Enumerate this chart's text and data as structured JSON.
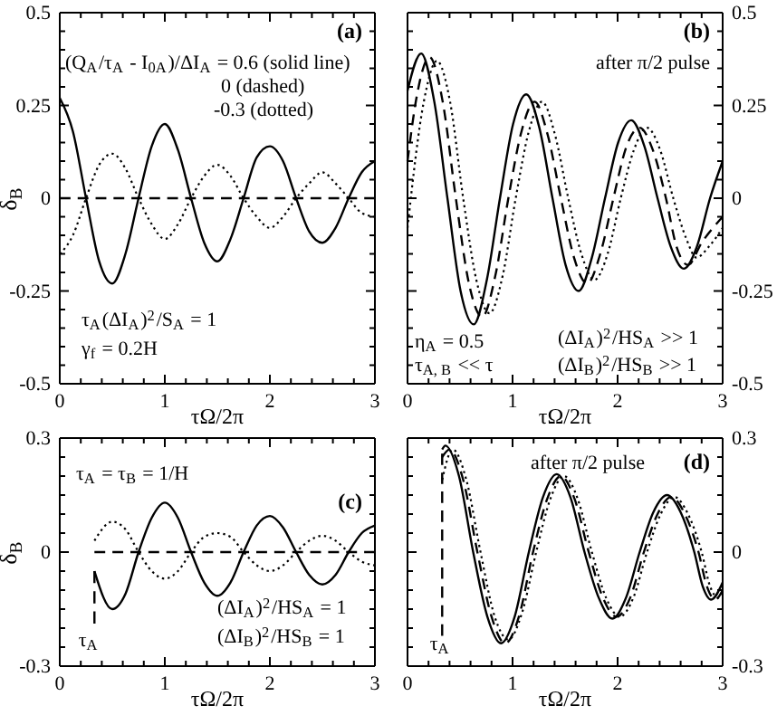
{
  "chart_data": [
    {
      "type": "line",
      "xlabel": "τΩ/2π",
      "ylabel": "δ$_{B}$",
      "xlim": [
        0,
        3
      ],
      "ylim": [
        -0.5,
        0.5
      ],
      "xticks": [
        0,
        {
          "value": 0.2,
          "label": null
        },
        {
          "value": 0.4,
          "label": null
        },
        {
          "value": 0.6,
          "label": null
        },
        {
          "value": 0.8,
          "label": null
        },
        1,
        {
          "value": 1.2,
          "label": null
        },
        {
          "value": 1.4,
          "label": null
        },
        {
          "value": 1.6,
          "label": null
        },
        {
          "value": 1.8,
          "label": null
        },
        2,
        {
          "value": 2.2,
          "label": null
        },
        {
          "value": 2.4,
          "label": null
        },
        {
          "value": 2.6,
          "label": null
        },
        {
          "value": 2.8,
          "label": null
        },
        3
      ],
      "yticks": [
        -0.5,
        {
          "value": -0.45,
          "label": null
        },
        {
          "value": -0.4,
          "label": null
        },
        {
          "value": -0.35,
          "label": null
        },
        {
          "value": -0.3,
          "label": null
        },
        -0.25,
        {
          "value": -0.2,
          "label": null
        },
        {
          "value": -0.15,
          "label": null
        },
        {
          "value": -0.1,
          "label": null
        },
        {
          "value": -0.05,
          "label": null
        },
        0,
        {
          "value": 0.05,
          "label": null
        },
        {
          "value": 0.1,
          "label": null
        },
        {
          "value": 0.15,
          "label": null
        },
        {
          "value": 0.2,
          "label": null
        },
        0.25,
        {
          "value": 0.3,
          "label": null
        },
        {
          "value": 0.35,
          "label": null
        },
        {
          "value": 0.4,
          "label": null
        },
        {
          "value": 0.45,
          "label": null
        },
        0.5
      ],
      "x": [
        0,
        0.125,
        0.25,
        0.375,
        0.5,
        0.625,
        0.75,
        0.875,
        1,
        1.125,
        1.25,
        1.375,
        1.5,
        1.625,
        1.75,
        1.875,
        2,
        2.125,
        2.25,
        2.375,
        2.5,
        2.625,
        2.75,
        2.875,
        3
      ],
      "series": [
        {
          "color": "#000000",
          "line_style": "solid",
          "values": [
            0.27,
            0.18,
            0,
            -0.17,
            -0.23,
            -0.15,
            0,
            0.14,
            0.2,
            0.13,
            0,
            -0.12,
            -0.17,
            -0.11,
            0,
            0.11,
            0.14,
            0.1,
            0,
            -0.09,
            -0.12,
            -0.08,
            0,
            0.07,
            0.1
          ]
        },
        {
          "color": "#000000",
          "line_style": "dashed",
          "x": [
            0,
            3
          ],
          "values": [
            0,
            0
          ]
        },
        {
          "color": "#000000",
          "line_style": "dotted",
          "values": [
            -0.15,
            -0.1,
            0,
            0.09,
            0.12,
            0.08,
            0,
            -0.07,
            -0.11,
            -0.07,
            0,
            0.06,
            0.09,
            0.06,
            0,
            -0.05,
            -0.08,
            -0.05,
            0,
            0.04,
            0.07,
            0.04,
            0,
            -0.04,
            -0.05
          ]
        }
      ],
      "annotations": [
        "(a)",
        "(Q$_{A}$/τ$_{A}$ - I$_{0A}$)/ΔI$_{A}$ = 0.6  (solid line)",
        "0  (dashed)",
        "-0.3  (dotted)",
        "τ$_{A}$(ΔI$_{A}$)$^{2}$/S$_{A}$ = 1",
        "γ$_{f}$ = 0.2H"
      ]
    },
    {
      "type": "line",
      "xlabel": "τΩ/2π",
      "xlim": [
        0,
        3
      ],
      "y2lim": [
        -0.5,
        0.5
      ],
      "xticks": [
        0,
        {
          "value": 0.2,
          "label": null
        },
        {
          "value": 0.4,
          "label": null
        },
        {
          "value": 0.6,
          "label": null
        },
        {
          "value": 0.8,
          "label": null
        },
        1,
        {
          "value": 1.2,
          "label": null
        },
        {
          "value": 1.4,
          "label": null
        },
        {
          "value": 1.6,
          "label": null
        },
        {
          "value": 1.8,
          "label": null
        },
        2,
        {
          "value": 2.2,
          "label": null
        },
        {
          "value": 2.4,
          "label": null
        },
        {
          "value": 2.6,
          "label": null
        },
        {
          "value": 2.8,
          "label": null
        },
        3
      ],
      "y2ticks": [
        -0.5,
        {
          "value": -0.45,
          "label": null
        },
        {
          "value": -0.4,
          "label": null
        },
        {
          "value": -0.35,
          "label": null
        },
        {
          "value": -0.3,
          "label": null
        },
        -0.25,
        {
          "value": -0.2,
          "label": null
        },
        {
          "value": -0.15,
          "label": null
        },
        {
          "value": -0.1,
          "label": null
        },
        {
          "value": -0.05,
          "label": null
        },
        0,
        {
          "value": 0.05,
          "label": null
        },
        {
          "value": 0.1,
          "label": null
        },
        {
          "value": 0.15,
          "label": null
        },
        {
          "value": 0.2,
          "label": null
        },
        0.25,
        {
          "value": 0.3,
          "label": null
        },
        {
          "value": 0.35,
          "label": null
        },
        {
          "value": 0.4,
          "label": null
        },
        {
          "value": 0.45,
          "label": null
        },
        0.5
      ],
      "series": [
        {
          "color": "#000000",
          "line_style": "solid",
          "axis": "y2",
          "x": [
            0,
            0.13,
            0.255,
            0.38,
            0.505,
            0.63,
            0.755,
            0.88,
            1.005,
            1.13,
            1.255,
            1.38,
            1.505,
            1.63,
            1.755,
            1.88,
            2.005,
            2.13,
            2.255,
            2.38,
            2.505,
            2.63,
            2.755,
            2.88,
            3
          ],
          "values": [
            0.29,
            0.39,
            0.26,
            0,
            -0.25,
            -0.34,
            -0.22,
            0,
            0.2,
            0.28,
            0.19,
            0,
            -0.18,
            -0.25,
            -0.16,
            0,
            0.15,
            0.21,
            0.14,
            0,
            -0.13,
            -0.19,
            -0.13,
            0,
            0.1
          ]
        },
        {
          "color": "#000000",
          "line_style": "dashed",
          "axis": "y2",
          "x": [
            0,
            0.085,
            0.21,
            0.335,
            0.46,
            0.585,
            0.71,
            0.835,
            0.96,
            1.085,
            1.21,
            1.335,
            1.46,
            1.585,
            1.71,
            1.835,
            1.96,
            2.085,
            2.21,
            2.335,
            2.46,
            2.56,
            2.67,
            2.8,
            3
          ],
          "values": [
            0.1,
            0.27,
            0.38,
            0.26,
            0,
            -0.23,
            -0.32,
            -0.21,
            0,
            0.18,
            0.26,
            0.17,
            0,
            -0.16,
            -0.23,
            -0.15,
            0,
            0.14,
            0.19,
            0.13,
            0,
            -0.13,
            -0.18,
            -0.12,
            -0.05
          ]
        },
        {
          "color": "#000000",
          "line_style": "dotted",
          "axis": "y2",
          "x": [
            0,
            0.155,
            0.28,
            0.405,
            0.53,
            0.655,
            0.78,
            0.905,
            1.03,
            1.155,
            1.28,
            1.405,
            1.53,
            1.655,
            1.78,
            1.905,
            2.03,
            2.155,
            2.28,
            2.405,
            2.53,
            2.655,
            2.75,
            2.87,
            3
          ],
          "values": [
            -0.08,
            0.26,
            0.37,
            0.26,
            0,
            -0.22,
            -0.31,
            -0.21,
            0,
            0.18,
            0.26,
            0.17,
            0,
            -0.15,
            -0.22,
            -0.15,
            0,
            0.13,
            0.19,
            0.13,
            0,
            -0.11,
            -0.16,
            -0.13,
            -0.08
          ]
        }
      ],
      "annotations": [
        "(b)",
        "after π/2 pulse",
        "η$_{A}$ = 0.5",
        "τ$_{A, B}$ << τ",
        "(ΔI$_{A}$)$^{2}$/HS$_{A}$ >> 1",
        "(ΔI$_{B}$)$^{2}$/HS$_{B}$ >> 1"
      ]
    },
    {
      "type": "line",
      "xlabel": "τΩ/2π",
      "ylabel": "δ$_{B}$",
      "xlim": [
        0,
        3
      ],
      "ylim": [
        -0.3,
        0.3
      ],
      "xticks": [
        0,
        {
          "value": 0.2,
          "label": null
        },
        {
          "value": 0.4,
          "label": null
        },
        {
          "value": 0.6,
          "label": null
        },
        {
          "value": 0.8,
          "label": null
        },
        1,
        {
          "value": 1.2,
          "label": null
        },
        {
          "value": 1.4,
          "label": null
        },
        {
          "value": 1.6,
          "label": null
        },
        {
          "value": 1.8,
          "label": null
        },
        2,
        {
          "value": 2.2,
          "label": null
        },
        {
          "value": 2.4,
          "label": null
        },
        {
          "value": 2.6,
          "label": null
        },
        {
          "value": 2.8,
          "label": null
        },
        3
      ],
      "yticks": [
        -0.3,
        {
          "value": -0.25,
          "label": null
        },
        {
          "value": -0.2,
          "label": null
        },
        {
          "value": -0.15,
          "label": null
        },
        {
          "value": -0.1,
          "label": null
        },
        {
          "value": -0.05,
          "label": null
        },
        0,
        {
          "value": 0.05,
          "label": null
        },
        {
          "value": 0.1,
          "label": null
        },
        {
          "value": 0.15,
          "label": null
        },
        {
          "value": 0.2,
          "label": null
        },
        {
          "value": 0.25,
          "label": null
        },
        0.3
      ],
      "x": [
        0.33,
        0.5,
        0.625,
        0.75,
        0.875,
        1,
        1.125,
        1.25,
        1.375,
        1.5,
        1.625,
        1.75,
        1.875,
        2,
        2.125,
        2.25,
        2.375,
        2.5,
        2.625,
        2.75,
        2.875,
        3
      ],
      "series": [
        {
          "color": "#000000",
          "line_style": "solid",
          "values": [
            -0.05,
            -0.15,
            -0.11,
            0,
            0.09,
            0.13,
            0.09,
            0,
            -0.08,
            -0.115,
            -0.08,
            0,
            0.07,
            0.095,
            0.065,
            0,
            -0.06,
            -0.085,
            -0.06,
            0,
            0.05,
            0.07
          ]
        },
        {
          "color": "#000000",
          "line_style": "dashed",
          "x": [
            0.33,
            3
          ],
          "values": [
            0,
            0
          ]
        },
        {
          "color": "#000000",
          "line_style": "dotted",
          "values": [
            0.03,
            0.08,
            0.06,
            0,
            -0.05,
            -0.07,
            -0.05,
            0,
            0.04,
            0.05,
            0.04,
            0,
            -0.035,
            -0.05,
            -0.035,
            0,
            0.03,
            0.043,
            0.03,
            0,
            -0.025,
            -0.035
          ]
        },
        {
          "color": "#000000",
          "line_style": "dashed",
          "x": [
            0.33,
            0.33
          ],
          "values": [
            -0.05,
            -0.19
          ]
        }
      ],
      "annotations": [
        "(c)",
        "τ$_{A}$ = τ$_{B}$ = 1/H",
        "(ΔI$_{A}$)$^{2}$/HS$_{A}$ = 1",
        "(ΔI$_{B}$)$^{2}$/HS$_{B}$ = 1",
        "τ$_{A}$"
      ]
    },
    {
      "type": "line",
      "xlabel": "τΩ/2π",
      "xlim": [
        0,
        3
      ],
      "y2lim": [
        -0.3,
        0.3
      ],
      "xticks": [
        0,
        {
          "value": 0.2,
          "label": null
        },
        {
          "value": 0.4,
          "label": null
        },
        {
          "value": 0.6,
          "label": null
        },
        {
          "value": 0.8,
          "label": null
        },
        1,
        {
          "value": 1.2,
          "label": null
        },
        {
          "value": 1.4,
          "label": null
        },
        {
          "value": 1.6,
          "label": null
        },
        {
          "value": 1.8,
          "label": null
        },
        2,
        {
          "value": 2.2,
          "label": null
        },
        {
          "value": 2.4,
          "label": null
        },
        {
          "value": 2.6,
          "label": null
        },
        {
          "value": 2.8,
          "label": null
        },
        3
      ],
      "y2ticks": [
        -0.3,
        {
          "value": -0.25,
          "label": null
        },
        {
          "value": -0.2,
          "label": null
        },
        {
          "value": -0.15,
          "label": null
        },
        {
          "value": -0.1,
          "label": null
        },
        {
          "value": -0.05,
          "label": null
        },
        0,
        {
          "value": 0.05,
          "label": null
        },
        {
          "value": 0.1,
          "label": null
        },
        {
          "value": 0.15,
          "label": null
        },
        {
          "value": 0.2,
          "label": null
        },
        {
          "value": 0.25,
          "label": null
        },
        0.3
      ],
      "series": [
        {
          "color": "#000000",
          "line_style": "solid",
          "axis": "y2",
          "x": [
            0.33,
            0.36,
            0.49,
            0.625,
            0.76,
            0.89,
            1.02,
            1.155,
            1.29,
            1.42,
            1.55,
            1.685,
            1.82,
            1.95,
            2.08,
            2.21,
            2.34,
            2.47,
            2.6,
            2.73,
            2.81,
            2.89,
            3
          ],
          "values": [
            0.27,
            0.28,
            0.2,
            0,
            -0.17,
            -0.24,
            -0.17,
            0,
            0.145,
            0.205,
            0.145,
            0,
            -0.12,
            -0.175,
            -0.12,
            0,
            0.105,
            0.15,
            0.105,
            0,
            -0.09,
            -0.125,
            -0.08
          ]
        },
        {
          "color": "#000000",
          "line_style": "dashed",
          "axis": "y2",
          "x": [
            0.33,
            0.4,
            0.53,
            0.665,
            0.8,
            0.93,
            1.06,
            1.195,
            1.33,
            1.46,
            1.59,
            1.725,
            1.86,
            1.99,
            2.12,
            2.25,
            2.38,
            2.51,
            2.64,
            2.77,
            2.85,
            2.93,
            3
          ],
          "values": [
            0.25,
            0.27,
            0.19,
            0,
            -0.17,
            -0.24,
            -0.17,
            0,
            0.14,
            0.2,
            0.14,
            0,
            -0.12,
            -0.17,
            -0.12,
            0,
            0.1,
            0.145,
            0.1,
            0,
            -0.09,
            -0.125,
            -0.1
          ]
        },
        {
          "color": "#000000",
          "line_style": "dotted",
          "axis": "y2",
          "x": [
            0.33,
            0.43,
            0.56,
            0.695,
            0.83,
            0.96,
            1.09,
            1.225,
            1.36,
            1.49,
            1.62,
            1.755,
            1.89,
            2.02,
            2.15,
            2.28,
            2.41,
            2.54,
            2.67,
            2.8,
            2.88,
            2.96,
            3
          ],
          "values": [
            0.19,
            0.27,
            0.19,
            0,
            -0.17,
            -0.23,
            -0.16,
            0,
            0.14,
            0.2,
            0.14,
            0,
            -0.12,
            -0.17,
            -0.12,
            0,
            0.1,
            0.145,
            0.1,
            0,
            -0.09,
            -0.12,
            -0.11
          ]
        },
        {
          "color": "#000000",
          "line_style": "dashed",
          "axis": "y2",
          "x": [
            0.33,
            0.33
          ],
          "values": [
            -0.22,
            0.26
          ]
        }
      ],
      "annotations": [
        "(d)",
        "after π/2 pulse",
        "τ$_{A}$"
      ]
    }
  ]
}
